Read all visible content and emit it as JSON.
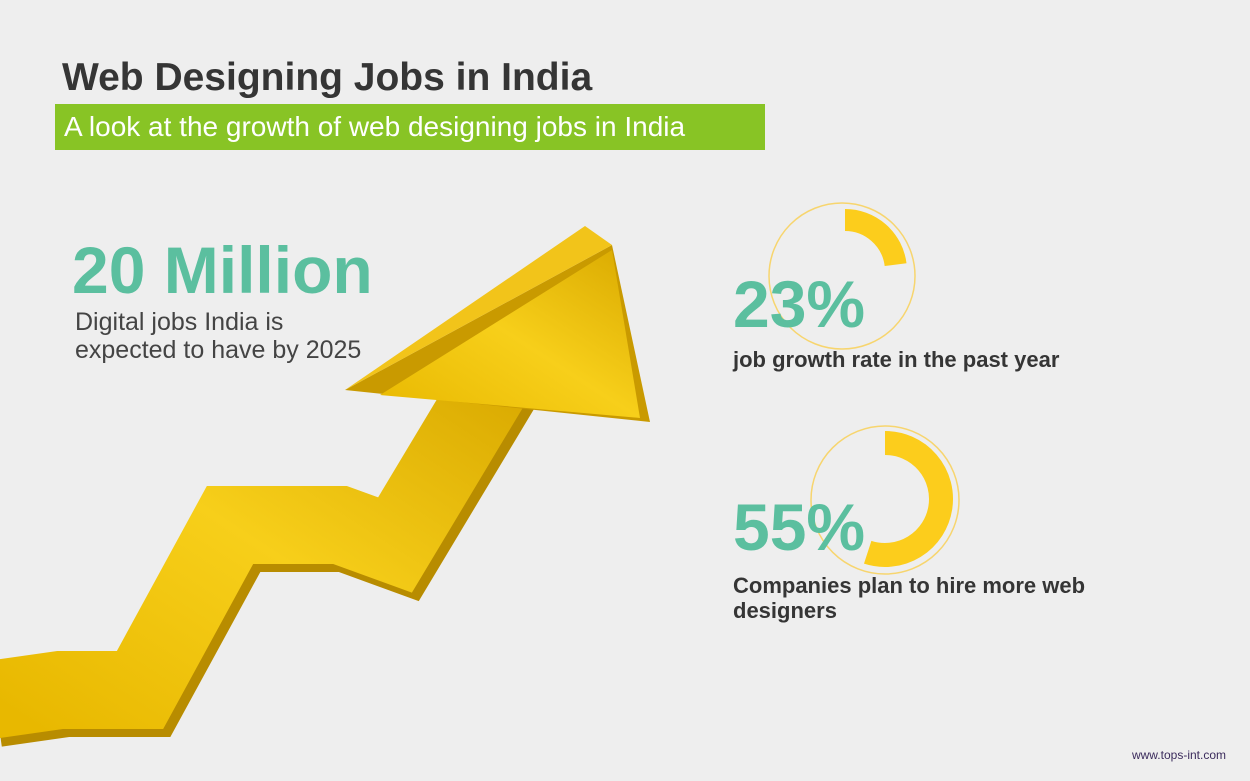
{
  "header": {
    "title": "Web Designing Jobs in India",
    "subtitle": "A look at the growth of web designing jobs in India"
  },
  "highlight": {
    "figure": "20 Million",
    "text": "Digital jobs India is expected to have by 2025"
  },
  "stats": [
    {
      "label": "23%",
      "value": 23,
      "text": "job growth rate in the past year"
    },
    {
      "label": "55%",
      "value": 55,
      "text": "Companies plan to hire more web designers"
    }
  ],
  "footer": {
    "url": "www.tops-int.com"
  }
}
